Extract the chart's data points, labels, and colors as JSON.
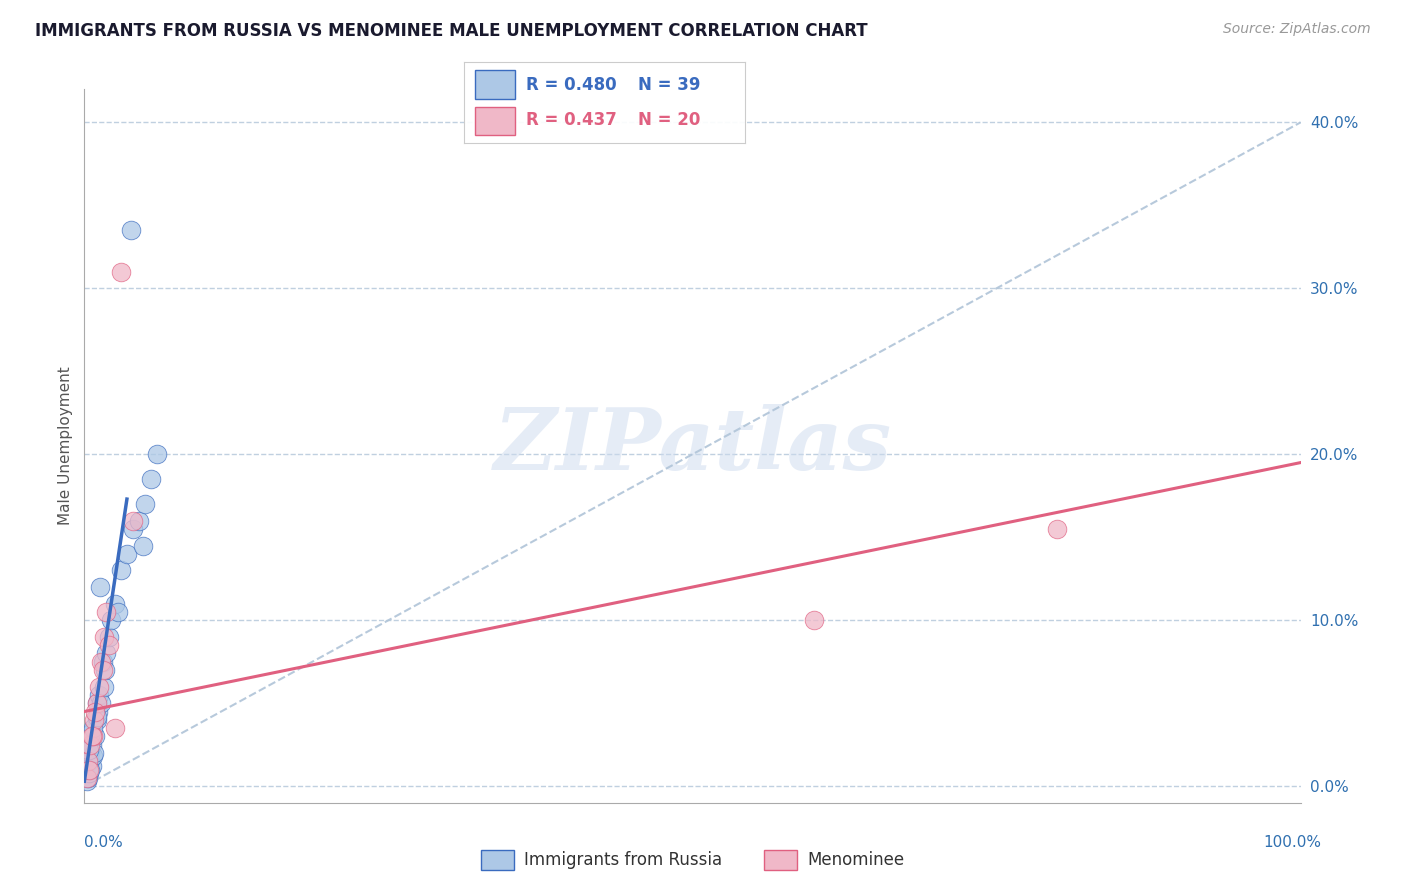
{
  "title": "IMMIGRANTS FROM RUSSIA VS MENOMINEE MALE UNEMPLOYMENT CORRELATION CHART",
  "source_text": "Source: ZipAtlas.com",
  "ylabel": "Male Unemployment",
  "xlim": [
    0,
    100
  ],
  "ylim": [
    -1,
    42
  ],
  "yticks": [
    0,
    10,
    20,
    30,
    40
  ],
  "ytick_labels": [
    "0.0%",
    "10.0%",
    "20.0%",
    "30.0%",
    "40.0%"
  ],
  "legend_blue_r": "R = 0.480",
  "legend_blue_n": "N = 39",
  "legend_pink_r": "R = 0.437",
  "legend_pink_n": "N = 20",
  "blue_x": [
    0.2,
    0.3,
    0.3,
    0.4,
    0.5,
    0.5,
    0.6,
    0.6,
    0.7,
    0.8,
    0.9,
    1.0,
    1.0,
    1.1,
    1.2,
    1.3,
    1.4,
    1.5,
    1.6,
    1.7,
    1.8,
    2.0,
    2.2,
    2.5,
    2.8,
    3.0,
    3.5,
    4.0,
    4.5,
    5.0,
    5.5,
    6.0,
    0.35,
    0.55,
    0.75,
    1.05,
    3.8,
    4.8,
    0.45
  ],
  "blue_y": [
    0.3,
    0.5,
    1.0,
    0.8,
    1.5,
    2.0,
    1.2,
    2.5,
    1.8,
    2.0,
    3.0,
    5.0,
    4.0,
    4.5,
    5.5,
    12.0,
    5.0,
    7.5,
    6.0,
    7.0,
    8.0,
    9.0,
    10.0,
    11.0,
    10.5,
    13.0,
    14.0,
    15.5,
    16.0,
    17.0,
    18.5,
    20.0,
    2.2,
    3.2,
    3.5,
    4.2,
    33.5,
    14.5,
    1.0
  ],
  "pink_x": [
    0.2,
    0.3,
    0.4,
    0.5,
    0.7,
    0.8,
    1.0,
    1.2,
    1.4,
    1.6,
    1.8,
    2.0,
    2.5,
    3.0,
    4.0,
    60.0,
    80.0,
    0.6,
    0.9,
    1.5
  ],
  "pink_y": [
    0.5,
    1.5,
    1.0,
    2.5,
    3.0,
    4.0,
    5.0,
    6.0,
    7.5,
    9.0,
    10.5,
    8.5,
    3.5,
    31.0,
    16.0,
    10.0,
    15.5,
    3.0,
    4.5,
    7.0
  ],
  "watermark_text": "ZIPatlas",
  "blue_face": "#adc8e6",
  "blue_edge": "#3a6bbf",
  "pink_face": "#f0b8c8",
  "pink_edge": "#e06080",
  "grid_color": "#c0d0e0",
  "diag_color": "#b0c4d8",
  "bg_color": "#ffffff",
  "title_color": "#1a1a2e",
  "ylabel_color": "#555555",
  "tick_color": "#3070b0",
  "source_color": "#999999"
}
